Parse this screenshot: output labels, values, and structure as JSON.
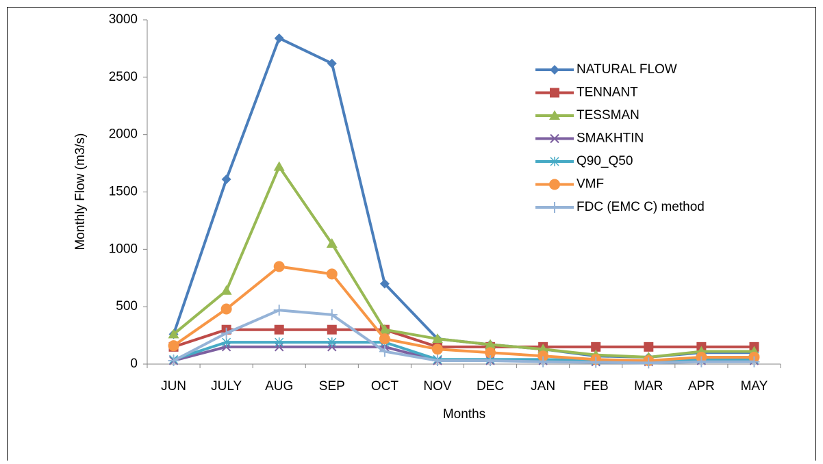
{
  "chart_data": {
    "type": "line",
    "x_label": "Months",
    "y_label": "Monthly Flow (m3/s)",
    "categories": [
      "JUN",
      "JULY",
      "AUG",
      "SEP",
      "OCT",
      "NOV",
      "DEC",
      "JAN",
      "FEB",
      "MAR",
      "APR",
      "MAY"
    ],
    "ylim": [
      0,
      3000
    ],
    "yticks": [
      0,
      500,
      1000,
      1500,
      2000,
      2500,
      3000
    ],
    "grid": false,
    "legend": "right",
    "series": [
      {
        "name": "NATURAL FLOW",
        "color": "#4a7ebb",
        "marker": "diamond",
        "values": [
          260,
          1610,
          2840,
          2620,
          700,
          220,
          170,
          130,
          70,
          60,
          100,
          100
        ]
      },
      {
        "name": "TENNANT",
        "color": "#be4b48",
        "marker": "square",
        "values": [
          150,
          300,
          300,
          300,
          300,
          150,
          150,
          150,
          150,
          150,
          150,
          150
        ]
      },
      {
        "name": "TESSMAN",
        "color": "#98b954",
        "marker": "triangle",
        "values": [
          260,
          640,
          1720,
          1050,
          300,
          220,
          170,
          130,
          80,
          60,
          110,
          110
        ]
      },
      {
        "name": "SMAKHTIN",
        "color": "#7d60a0",
        "marker": "x",
        "values": [
          30,
          150,
          150,
          150,
          150,
          30,
          30,
          30,
          20,
          20,
          30,
          30
        ]
      },
      {
        "name": "Q90_Q50",
        "color": "#46aac5",
        "marker": "asterisk",
        "values": [
          40,
          190,
          190,
          190,
          190,
          40,
          40,
          40,
          30,
          30,
          40,
          40
        ]
      },
      {
        "name": "VMF",
        "color": "#f79646",
        "marker": "circle",
        "values": [
          160,
          480,
          850,
          785,
          220,
          130,
          100,
          70,
          40,
          30,
          60,
          60
        ]
      },
      {
        "name": "FDC (EMC C) method",
        "color": "#95b3d7",
        "marker": "plus",
        "values": [
          30,
          270,
          470,
          430,
          110,
          30,
          30,
          20,
          15,
          10,
          20,
          20
        ]
      }
    ]
  }
}
